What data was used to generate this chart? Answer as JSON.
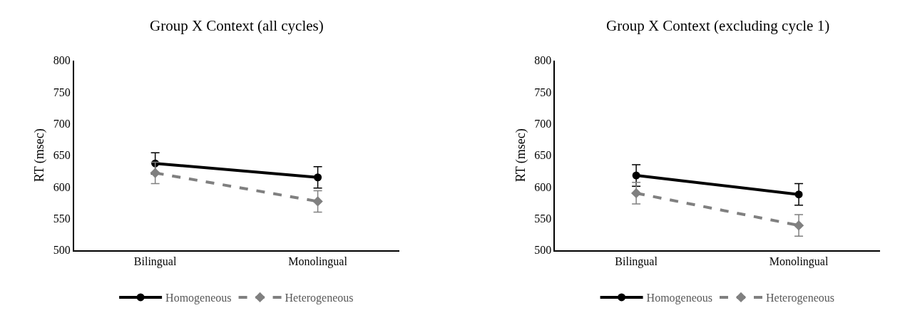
{
  "chart_data": [
    {
      "type": "line",
      "title": "Group X Context (all cycles)",
      "ylabel": "RT (msec)",
      "categories": [
        "Bilingual",
        "Monolingual"
      ],
      "series": [
        {
          "name": "Homogeneous",
          "color": "#000000",
          "values": [
            637,
            615
          ],
          "errors": [
            17,
            17
          ],
          "marker": "circle",
          "line_style": "solid"
        },
        {
          "name": "Heterogeneous",
          "color": "#808080",
          "values": [
            622,
            577
          ],
          "errors": [
            17,
            17
          ],
          "marker": "diamond",
          "line_style": "dashed"
        }
      ],
      "ylim": [
        500,
        800
      ],
      "yticks": [
        500,
        550,
        600,
        650,
        700,
        750,
        800
      ],
      "legend": "bottom"
    },
    {
      "type": "line",
      "title": "Group X Context (excluding cycle 1)",
      "ylabel": "RT (msec)",
      "categories": [
        "Bilingual",
        "Monolingual"
      ],
      "series": [
        {
          "name": "Homogeneous",
          "color": "#000000",
          "values": [
            618,
            588
          ],
          "errors": [
            17,
            17
          ],
          "marker": "circle",
          "line_style": "solid"
        },
        {
          "name": "Heterogeneous",
          "color": "#808080",
          "values": [
            590,
            539
          ],
          "errors": [
            17,
            17
          ],
          "marker": "diamond",
          "line_style": "dashed"
        }
      ],
      "ylim": [
        500,
        800
      ],
      "yticks": [
        500,
        550,
        600,
        650,
        700,
        750,
        800
      ],
      "legend": "bottom"
    }
  ]
}
